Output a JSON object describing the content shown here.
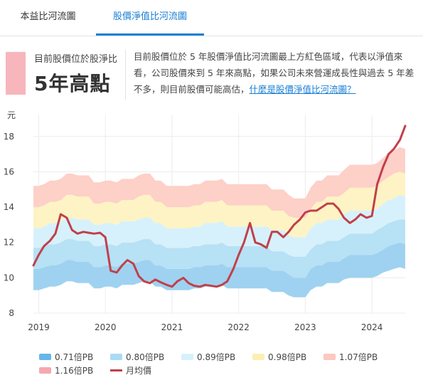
{
  "tabs": [
    {
      "label": "本益比河流圖",
      "active": false
    },
    {
      "label": "股價淨值比河流圖",
      "active": true
    }
  ],
  "summary": {
    "small_label": "目前股價位於股淨比",
    "big_label": "5年高點",
    "swatch_color": "#f7b6bc",
    "description": "目前股價位於 5 年股價淨值比河流圖最上方紅色區域，代表以淨值來看，公司股價來到 5 年來高點，如果公司未來營運成長性與過去 5 年差不多，則目前股價可能高估，",
    "link_text": "什麼是股價淨值比河流圖？"
  },
  "chart_data": {
    "type": "area",
    "ylabel": "元",
    "ylim": [
      8,
      19.2
    ],
    "yticks": [
      8,
      10,
      12,
      14,
      16,
      18
    ],
    "xlim": [
      2018.92,
      2024.5
    ],
    "xticks": [
      "2019",
      "2020",
      "2021",
      "2022",
      "2023",
      "2024"
    ],
    "x": [
      2018.92,
      2019.0,
      2019.08,
      2019.17,
      2019.25,
      2019.33,
      2019.42,
      2019.5,
      2019.58,
      2019.67,
      2019.75,
      2019.83,
      2019.92,
      2020.0,
      2020.08,
      2020.17,
      2020.25,
      2020.33,
      2020.42,
      2020.5,
      2020.58,
      2020.67,
      2020.75,
      2020.83,
      2020.92,
      2021.0,
      2021.08,
      2021.17,
      2021.25,
      2021.33,
      2021.42,
      2021.5,
      2021.58,
      2021.67,
      2021.75,
      2021.83,
      2021.92,
      2022.0,
      2022.08,
      2022.17,
      2022.25,
      2022.33,
      2022.42,
      2022.5,
      2022.58,
      2022.67,
      2022.75,
      2022.83,
      2022.92,
      2023.0,
      2023.08,
      2023.17,
      2023.25,
      2023.33,
      2023.42,
      2023.5,
      2023.58,
      2023.67,
      2023.75,
      2023.83,
      2023.92,
      2024.0,
      2024.08,
      2024.17,
      2024.25,
      2024.33,
      2024.42,
      2024.5
    ],
    "series": [
      {
        "name": "0.71倍PB",
        "color": "#9fd2f0",
        "values": [
          9.3,
          9.3,
          9.4,
          9.5,
          9.5,
          9.6,
          9.8,
          9.8,
          9.7,
          9.7,
          9.7,
          9.4,
          9.4,
          9.5,
          9.5,
          9.4,
          9.6,
          9.6,
          9.6,
          9.7,
          9.8,
          9.8,
          9.5,
          9.5,
          9.3,
          9.3,
          9.3,
          9.3,
          9.3,
          9.4,
          9.4,
          9.5,
          9.5,
          9.5,
          9.6,
          9.4,
          9.4,
          9.4,
          9.4,
          9.4,
          9.4,
          9.4,
          9.4,
          9.2,
          9.2,
          9.2,
          9.0,
          8.9,
          8.9,
          8.9,
          9.3,
          9.5,
          9.5,
          9.7,
          9.7,
          9.7,
          9.9,
          10.0,
          10.0,
          10.0,
          10.0,
          10.0,
          10.1,
          10.3,
          10.4,
          10.5,
          10.6,
          10.5
        ]
      },
      {
        "name": "0.80倍PB",
        "color": "#b7e1f5",
        "values": [
          10.5,
          10.5,
          10.6,
          10.7,
          10.7,
          10.8,
          11.0,
          11.0,
          10.9,
          10.9,
          10.9,
          10.6,
          10.6,
          10.7,
          10.7,
          10.6,
          10.8,
          10.8,
          10.8,
          10.9,
          11.0,
          11.0,
          10.7,
          10.7,
          10.5,
          10.5,
          10.5,
          10.5,
          10.5,
          10.6,
          10.6,
          10.7,
          10.7,
          10.7,
          10.8,
          10.6,
          10.6,
          10.6,
          10.6,
          10.6,
          10.6,
          10.6,
          10.6,
          10.4,
          10.4,
          10.4,
          10.2,
          10.0,
          10.0,
          10.0,
          10.5,
          10.7,
          10.7,
          10.9,
          10.9,
          10.9,
          11.1,
          11.3,
          11.3,
          11.3,
          11.3,
          11.3,
          11.4,
          11.6,
          11.8,
          11.9,
          12.0,
          11.9
        ]
      },
      {
        "name": "0.89倍PB",
        "color": "#d6f1fb",
        "values": [
          11.7,
          11.7,
          11.8,
          11.9,
          11.9,
          12.0,
          12.2,
          12.2,
          12.1,
          12.1,
          12.1,
          11.8,
          11.8,
          11.9,
          11.9,
          11.8,
          12.0,
          12.0,
          12.0,
          12.1,
          12.2,
          12.2,
          11.9,
          11.9,
          11.7,
          11.7,
          11.7,
          11.7,
          11.7,
          11.8,
          11.8,
          11.9,
          11.9,
          11.9,
          12.0,
          11.8,
          11.8,
          11.8,
          11.8,
          11.8,
          11.8,
          11.8,
          11.8,
          11.5,
          11.5,
          11.5,
          11.3,
          11.2,
          11.2,
          11.2,
          11.6,
          11.9,
          11.9,
          12.1,
          12.1,
          12.1,
          12.3,
          12.5,
          12.5,
          12.5,
          12.5,
          12.5,
          12.7,
          12.9,
          13.1,
          13.2,
          13.3,
          13.3
        ]
      },
      {
        "name": "0.98倍PB",
        "color": "#fdf3c4",
        "values": [
          12.8,
          12.8,
          12.9,
          13.1,
          13.1,
          13.2,
          13.4,
          13.4,
          13.3,
          13.3,
          13.3,
          13.0,
          13.0,
          13.1,
          13.1,
          13.0,
          13.2,
          13.2,
          13.2,
          13.3,
          13.4,
          13.4,
          13.1,
          13.1,
          12.8,
          12.8,
          12.8,
          12.8,
          12.8,
          12.9,
          12.9,
          13.1,
          13.1,
          13.1,
          13.2,
          12.9,
          12.9,
          12.9,
          12.9,
          12.9,
          12.9,
          12.9,
          12.9,
          12.7,
          12.7,
          12.7,
          12.4,
          12.3,
          12.3,
          12.3,
          12.8,
          13.1,
          13.1,
          13.3,
          13.3,
          13.3,
          13.6,
          13.8,
          13.8,
          13.8,
          13.8,
          13.8,
          13.9,
          14.2,
          14.4,
          14.5,
          14.7,
          14.6
        ]
      },
      {
        "name": "1.07倍PB",
        "color": "#fdd0c8",
        "values": [
          14.0,
          14.0,
          14.1,
          14.3,
          14.3,
          14.4,
          14.7,
          14.7,
          14.6,
          14.6,
          14.6,
          14.2,
          14.2,
          14.3,
          14.3,
          14.2,
          14.4,
          14.4,
          14.4,
          14.6,
          14.7,
          14.7,
          14.3,
          14.3,
          14.0,
          14.0,
          14.0,
          14.0,
          14.0,
          14.1,
          14.1,
          14.3,
          14.3,
          14.3,
          14.4,
          14.1,
          14.1,
          14.1,
          14.1,
          14.1,
          14.1,
          14.1,
          14.1,
          13.8,
          13.8,
          13.8,
          13.5,
          13.4,
          13.4,
          13.4,
          13.9,
          14.3,
          14.3,
          14.6,
          14.6,
          14.6,
          14.8,
          15.1,
          15.1,
          15.1,
          15.1,
          15.1,
          15.2,
          15.5,
          15.7,
          15.9,
          16.0,
          15.9
        ]
      },
      {
        "name": "1.16倍PB",
        "color": "#f8bfc3",
        "values": [
          15.2,
          15.2,
          15.3,
          15.5,
          15.5,
          15.6,
          15.9,
          15.9,
          15.8,
          15.8,
          15.8,
          15.4,
          15.4,
          15.5,
          15.5,
          15.4,
          15.6,
          15.6,
          15.6,
          15.8,
          15.9,
          15.9,
          15.5,
          15.5,
          15.2,
          15.2,
          15.2,
          15.2,
          15.2,
          15.3,
          15.3,
          15.5,
          15.5,
          15.5,
          15.6,
          15.3,
          15.3,
          15.3,
          15.3,
          15.3,
          15.3,
          15.3,
          15.3,
          15.0,
          15.0,
          15.0,
          14.7,
          14.5,
          14.5,
          14.5,
          15.1,
          15.5,
          15.5,
          15.8,
          15.8,
          15.8,
          16.1,
          16.4,
          16.4,
          16.4,
          16.4,
          16.4,
          16.5,
          16.8,
          17.1,
          17.2,
          17.4,
          17.3
        ]
      },
      {
        "name": "月均價",
        "color": "#c0404a",
        "values": [
          10.7,
          11.3,
          11.8,
          12.1,
          12.5,
          13.6,
          13.4,
          12.7,
          12.5,
          12.6,
          12.55,
          12.5,
          12.55,
          12.3,
          10.4,
          10.3,
          10.7,
          11.0,
          10.8,
          10.1,
          9.8,
          9.7,
          9.9,
          9.75,
          9.6,
          9.5,
          9.8,
          10.0,
          9.7,
          9.55,
          9.5,
          9.6,
          9.55,
          9.5,
          9.6,
          9.8,
          10.5,
          11.3,
          12.0,
          13.1,
          12.0,
          11.9,
          11.7,
          12.6,
          12.6,
          12.3,
          12.6,
          13.0,
          13.3,
          13.7,
          13.8,
          13.8,
          14.0,
          14.2,
          14.2,
          13.9,
          13.4,
          13.1,
          13.3,
          13.6,
          13.4,
          13.5,
          15.3,
          16.3,
          17.0,
          17.3,
          17.8,
          18.6
        ]
      }
    ]
  }
}
